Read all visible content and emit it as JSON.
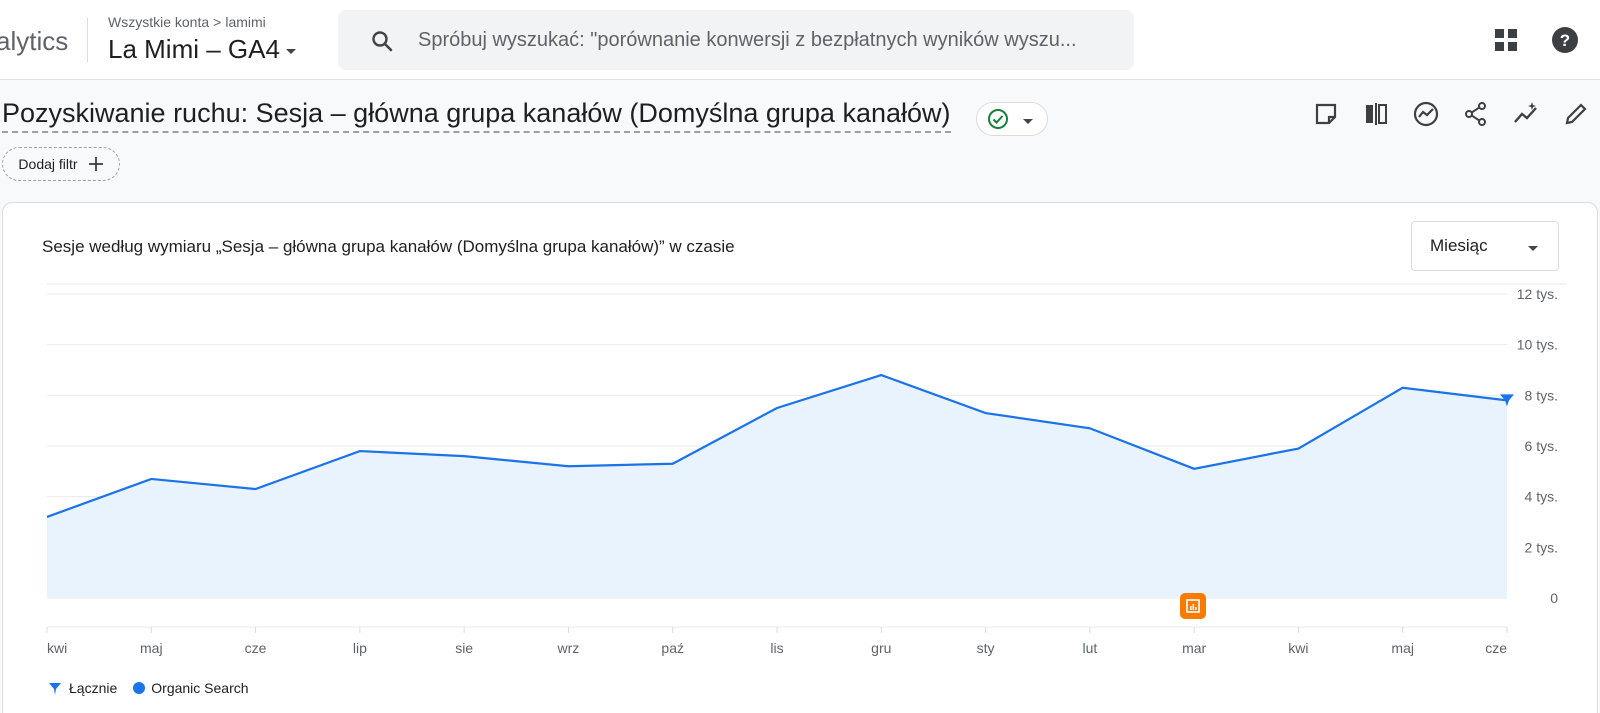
{
  "header": {
    "brand": "alytics",
    "breadcrumb": {
      "all_accounts": "Wszystkie konta",
      "separator": ">",
      "account": "lamimi"
    },
    "property": "La Mimi – GA4",
    "search_placeholder": "Spróbuj wyszukać: \"porównanie konwersji z bezpłatnych wyników wyszu..."
  },
  "page": {
    "title": "Pozyskiwanie ruchu: Sesja – główna grupa kanałów (Domyślna grupa kanałów)",
    "add_filter": "Dodaj filtr"
  },
  "card": {
    "title": "Sesje według wymiaru „Sesja – główna grupa kanałów (Domyślna grupa kanałów)” w czasie",
    "period": "Miesiąc"
  },
  "legend": {
    "total": "Łącznie",
    "series": "Organic Search"
  },
  "colors": {
    "accent": "#1a73e8",
    "fill": "#e8f3fe",
    "success": "#188038",
    "annotation": "#f57c00"
  },
  "chart_data": {
    "type": "area",
    "x": [
      "kwi",
      "maj",
      "cze",
      "lip",
      "sie",
      "wrz",
      "paź",
      "lis",
      "gru",
      "sty",
      "lut",
      "mar",
      "kwi",
      "maj",
      "cze"
    ],
    "series": [
      {
        "name": "Organic Search",
        "values": [
          3200,
          4700,
          4300,
          5800,
          5600,
          5200,
          5300,
          7500,
          8800,
          7300,
          6700,
          5100,
          5900,
          8300,
          7800
        ]
      }
    ],
    "ylim": [
      0,
      12000
    ],
    "y_ticks": [
      "0",
      "2 tys.",
      "4 tys.",
      "6 tys.",
      "8 tys.",
      "10 tys.",
      "12 tys."
    ],
    "grid": true,
    "legend": "bottom-left"
  }
}
